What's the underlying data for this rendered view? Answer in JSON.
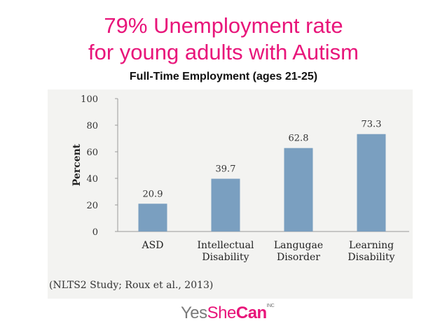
{
  "slide": {
    "title_line1": "79% Unemployment rate",
    "title_line2": "for young adults with Autism",
    "subtitle": "Full-Time Employment (ages 21-25)",
    "source": "(NLTS2 Study; Roux et al., 2013)",
    "logo": {
      "part1": "Yes",
      "part2": "She",
      "part3": "Can",
      "part4": "INC"
    }
  },
  "chart_data": {
    "type": "bar",
    "categories": [
      [
        "ASD"
      ],
      [
        "Intellectual",
        "Disability"
      ],
      [
        "Langugae",
        "Disorder"
      ],
      [
        "Learning",
        "Disability"
      ]
    ],
    "values": [
      20.9,
      39.7,
      62.8,
      73.3
    ],
    "value_labels": [
      "20.9",
      "39.7",
      "62.8",
      "73.3"
    ],
    "ylabel": "Percent",
    "ylim": [
      0,
      100
    ],
    "yticks": [
      0,
      20,
      40,
      60,
      80,
      100
    ],
    "bar_color": "#7a9fc0",
    "grid": false
  }
}
